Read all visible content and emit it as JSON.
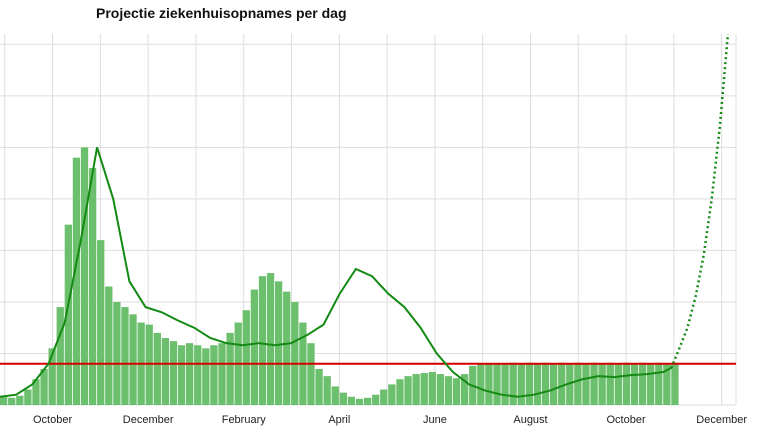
{
  "chart_data": {
    "type": "bar",
    "title": "Projectie ziekenhuisopnames per dag",
    "xlabel": "",
    "ylabel": "",
    "grid": true,
    "x_tick_labels": [
      "October",
      "December",
      "February",
      "April",
      "June",
      "August",
      "October",
      "December"
    ],
    "x_domain_days": [
      0,
      455
    ],
    "y_range": [
      0,
      360
    ],
    "reference_line": {
      "value": 40,
      "color": "#d40000"
    },
    "colors": {
      "bars": "#6cbf6c",
      "trend": "#138a13",
      "grid": "#dddddd"
    },
    "series": [
      {
        "type": "bar",
        "x": [
          0,
          5,
          10,
          15,
          20,
          25,
          30,
          35,
          40,
          45,
          50,
          55,
          60,
          65,
          70,
          75,
          80,
          85,
          90,
          95,
          100,
          105,
          110,
          115,
          120,
          125,
          130,
          135,
          140,
          145,
          150,
          155,
          160,
          165,
          170,
          175,
          180,
          185,
          190,
          195,
          200,
          205,
          210,
          215,
          220,
          225,
          230,
          235,
          240,
          245,
          250,
          255,
          260,
          265,
          270,
          275,
          280,
          285,
          290,
          295,
          300,
          305,
          310,
          315,
          320,
          325,
          330,
          335,
          340,
          345,
          350,
          355,
          360,
          365,
          370,
          375,
          380,
          385,
          390,
          395,
          400,
          405,
          410,
          415
        ],
        "values": [
          8,
          7,
          9,
          15,
          25,
          35,
          55,
          95,
          175,
          240,
          250,
          230,
          160,
          115,
          100,
          95,
          88,
          80,
          78,
          70,
          65,
          62,
          58,
          60,
          58,
          55,
          58,
          60,
          70,
          80,
          92,
          112,
          125,
          128,
          120,
          110,
          100,
          80,
          60,
          35,
          28,
          18,
          12,
          8,
          6,
          7,
          10,
          15,
          20,
          25,
          28,
          30,
          31,
          32,
          30,
          28,
          26,
          30,
          38,
          40,
          40,
          40,
          40,
          41,
          40,
          41,
          40,
          41,
          40,
          41,
          40,
          41,
          40,
          41,
          40,
          41,
          40,
          41,
          40,
          41,
          40,
          41,
          40,
          41
        ]
      },
      {
        "type": "line",
        "x": [
          0,
          10,
          20,
          30,
          40,
          50,
          60,
          70,
          80,
          90,
          100,
          110,
          120,
          130,
          140,
          150,
          160,
          170,
          180,
          190,
          200,
          210,
          220,
          230,
          240,
          250,
          260,
          270,
          280,
          290,
          300,
          310,
          320,
          330,
          340,
          350,
          360,
          370,
          380,
          390,
          400,
          410,
          415
        ],
        "values": [
          8,
          10,
          20,
          40,
          80,
          160,
          250,
          200,
          120,
          95,
          90,
          82,
          75,
          65,
          60,
          58,
          60,
          58,
          60,
          68,
          78,
          108,
          132,
          125,
          108,
          95,
          75,
          50,
          32,
          20,
          14,
          10,
          8,
          10,
          14,
          20,
          25,
          28,
          27,
          29,
          30,
          32,
          36
        ]
      },
      {
        "type": "line",
        "style": "dotted",
        "x": [
          415,
          420,
          425,
          430,
          435,
          440,
          445,
          450
        ],
        "values": [
          36,
          55,
          75,
          105,
          145,
          200,
          270,
          360
        ]
      }
    ]
  }
}
